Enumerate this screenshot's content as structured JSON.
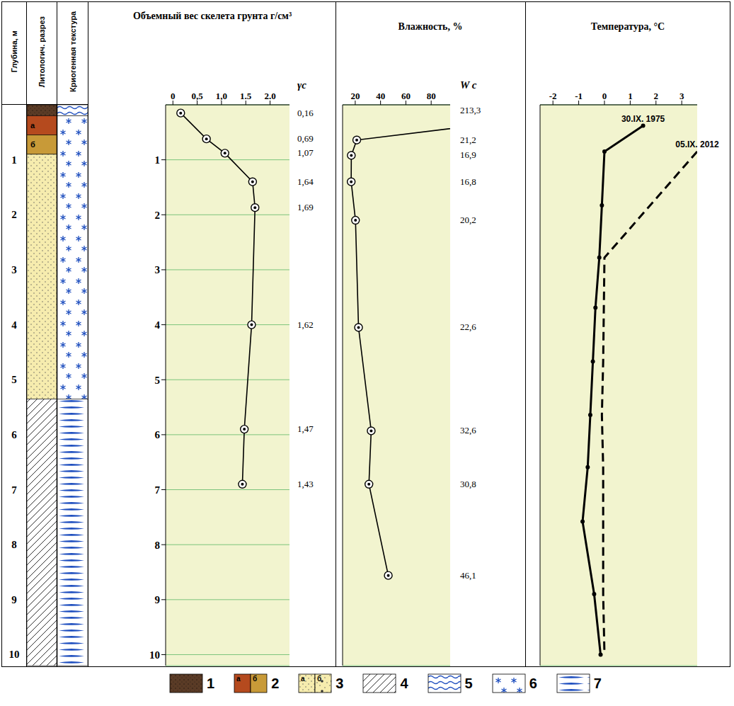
{
  "header": {
    "depth": "Глубина, м",
    "lithology": "Литологич. разрез",
    "cryo_texture": "Криогенная текстура"
  },
  "depth_axis": {
    "ylim": [
      0,
      10.2
    ],
    "yticks": [
      1,
      2,
      3,
      4,
      5,
      6,
      7,
      8,
      9,
      10
    ]
  },
  "lithology": [
    {
      "top": 0,
      "bottom": 0.2,
      "symbol": 1
    },
    {
      "top": 0.2,
      "bottom": 0.55,
      "symbol": 2,
      "mark": "а"
    },
    {
      "top": 0.55,
      "bottom": 0.9,
      "symbol": 2,
      "mark": "б"
    },
    {
      "top": 0.9,
      "bottom": 5.35,
      "symbol": 3
    },
    {
      "top": 5.35,
      "bottom": 10.2,
      "symbol": 4
    }
  ],
  "cryo_texture": [
    {
      "top": 0,
      "bottom": 0.2,
      "symbol": 5
    },
    {
      "top": 0.2,
      "bottom": 5.35,
      "symbol": 6
    },
    {
      "top": 5.35,
      "bottom": 10.2,
      "symbol": 7
    }
  ],
  "chart_data": [
    {
      "type": "line",
      "title": "Объемный вес скелета грунта г/см³",
      "column_title": "γc",
      "x": [
        0.16,
        0.69,
        1.07,
        1.64,
        1.69,
        1.62,
        1.47,
        1.43
      ],
      "y": [
        0.15,
        0.62,
        0.88,
        1.4,
        1.87,
        4.0,
        5.9,
        6.9
      ],
      "value_labels": [
        "0,16",
        "0,69",
        "1,07",
        "1,64",
        "1,69",
        "1,62",
        "1,47",
        "1,43"
      ],
      "xlim": [
        -0.15,
        2.4
      ],
      "xticks": [
        0,
        {
          "value": 0.5,
          "label": "0,5"
        },
        {
          "value": 1,
          "label": "1,0"
        },
        1.5,
        {
          "value": 2,
          "label": "2.0"
        }
      ],
      "ylim": [
        0,
        10.2
      ],
      "yticks": [
        1,
        2,
        3,
        4,
        5,
        6,
        7,
        8,
        9,
        10
      ],
      "grid": true,
      "marker": "circle",
      "line_style": "solid",
      "color": "#000000"
    },
    {
      "type": "line",
      "title": "Влажность, %",
      "column_title": "W c",
      "x": [
        213.3,
        21.2,
        16.9,
        16.8,
        20.2,
        22.6,
        32.6,
        30.8,
        46.1
      ],
      "y": [
        0.1,
        0.64,
        0.92,
        1.4,
        2.1,
        4.05,
        5.93,
        6.9,
        8.56
      ],
      "value_labels": [
        "213,3",
        "21,2",
        "16,9",
        "16,8",
        "20,2",
        "22,6",
        "32,6",
        "30,8",
        "46,1"
      ],
      "xlim": [
        10,
        95
      ],
      "xticks": [
        20,
        40,
        60,
        80
      ],
      "ylim": [
        0,
        10.2
      ],
      "yticks": [
        1,
        2,
        3,
        4,
        5,
        6,
        7,
        8,
        9,
        10
      ],
      "tick_labels": "x",
      "grid": true,
      "marker": "circle",
      "line_style": "solid",
      "color": "#000000"
    },
    {
      "type": "line",
      "title": "Температура, °C",
      "series": [
        {
          "name": "30.IX. 1975",
          "color": "#000000",
          "marker": "dot",
          "line_style": "solid",
          "x": [
            1.5,
            0,
            -0.1,
            -0.2,
            -0.35,
            -0.45,
            -0.55,
            -0.65,
            -0.85,
            -0.4,
            -0.15
          ],
          "y": [
            0.38,
            0.85,
            1.83,
            2.78,
            3.69,
            4.67,
            5.64,
            6.59,
            7.58,
            8.9,
            10.0
          ]
        },
        {
          "name": "05.IX. 2012",
          "color": "#000000",
          "marker": "none",
          "line_style": "dashed",
          "x": [
            3.6,
            0,
            -0.05,
            -0.1,
            -0.05,
            -0.05,
            0
          ],
          "y": [
            0.85,
            2.78,
            4.67,
            5.64,
            6.59,
            8.9,
            10.0
          ]
        }
      ],
      "xlim": [
        -2.5,
        3.6
      ],
      "xticks": [
        -2,
        -1,
        0,
        1,
        2,
        3
      ],
      "ylim": [
        0,
        10.2
      ],
      "yticks": [
        1,
        2,
        3,
        4,
        5,
        6,
        7,
        8,
        9,
        10
      ],
      "tick_labels": "x",
      "grid": true
    }
  ],
  "legend_items": [
    {
      "label": 1,
      "color": "#5a3b26"
    },
    {
      "label": 2,
      "parts": [
        {
          "mark": "а",
          "color": "#b54a1e"
        },
        {
          "mark": "б",
          "color": "#c89a38"
        }
      ]
    },
    {
      "label": 3,
      "parts": [
        {
          "mark": "а",
          "color": "#f6ecae"
        },
        {
          "mark": "б",
          "color": "#f6ecae"
        }
      ]
    },
    {
      "label": 4,
      "color": "#333333"
    },
    {
      "label": 5,
      "color": "#1f4fbf"
    },
    {
      "label": 6,
      "color": "#1f4fbf"
    },
    {
      "label": 7,
      "color": "#1f4fbf"
    }
  ]
}
